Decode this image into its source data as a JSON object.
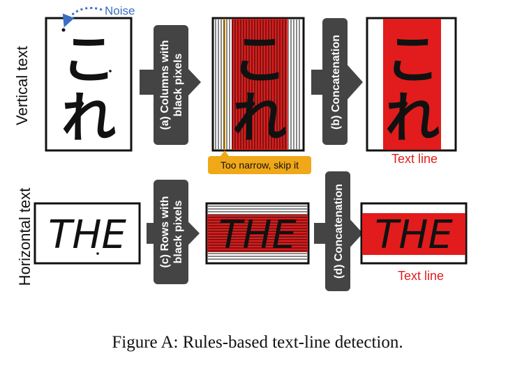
{
  "labels": {
    "noise": "Noise",
    "vertical_text": "Vertical text",
    "horizontal_text": "Horizontal text",
    "too_narrow": "Too narrow, skip it",
    "text_line_vertical": "Text line",
    "text_line_horizontal": "Text line"
  },
  "steps": {
    "a_line1": "(a) Columns with",
    "a_line2": "black pixels",
    "b": "(b) Concatenation",
    "c_line1": "(c) Rows with",
    "c_line2": "black pixels",
    "d": "(d) Concatenation"
  },
  "samples": {
    "vertical_glyph_top": "こ",
    "vertical_glyph_bottom": "れ",
    "horizontal_word": "THE"
  },
  "caption": "Figure A: Rules-based text-line detection.",
  "colors": {
    "highlight_red": "#e21c1c",
    "arrow_gray": "#444444",
    "callout_orange": "#f0a818",
    "noise_blue": "#3a6fc4",
    "text_line_red": "#e21c1c"
  }
}
